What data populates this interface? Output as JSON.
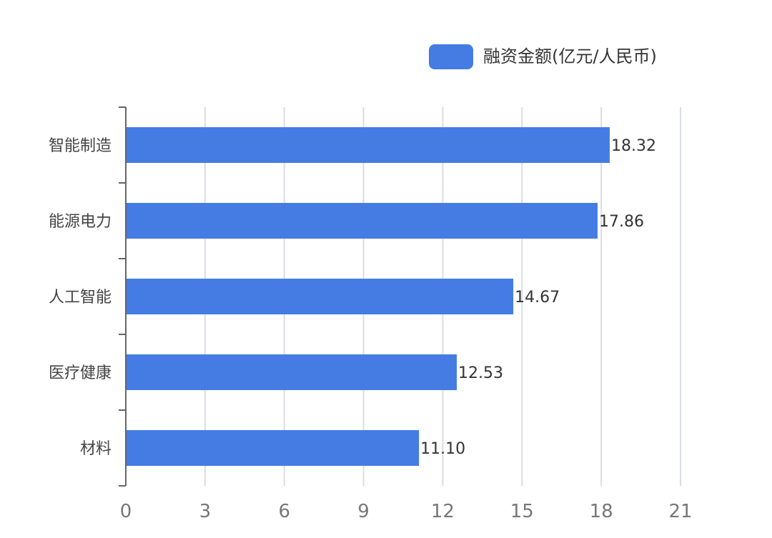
{
  "chart_data": {
    "type": "bar",
    "orientation": "horizontal",
    "categories": [
      "智能制造",
      "能源电力",
      "人工智能",
      "医疗健康",
      "材料"
    ],
    "series": [
      {
        "name": "融资金额(亿元/人民币)",
        "values": [
          18.32,
          17.86,
          14.67,
          12.53,
          11.1
        ],
        "value_labels": [
          "18.32",
          "17.86",
          "14.67",
          "12.53",
          "11.10"
        ]
      }
    ],
    "x_ticks": [
      0,
      3,
      6,
      9,
      12,
      15,
      18,
      21
    ],
    "xlim": [
      0,
      21
    ],
    "grid": "vertical",
    "legend_position": "top-right",
    "colors": {
      "bar": "#447ce3",
      "grid": "#d9dde3",
      "axis": "#666666"
    }
  }
}
